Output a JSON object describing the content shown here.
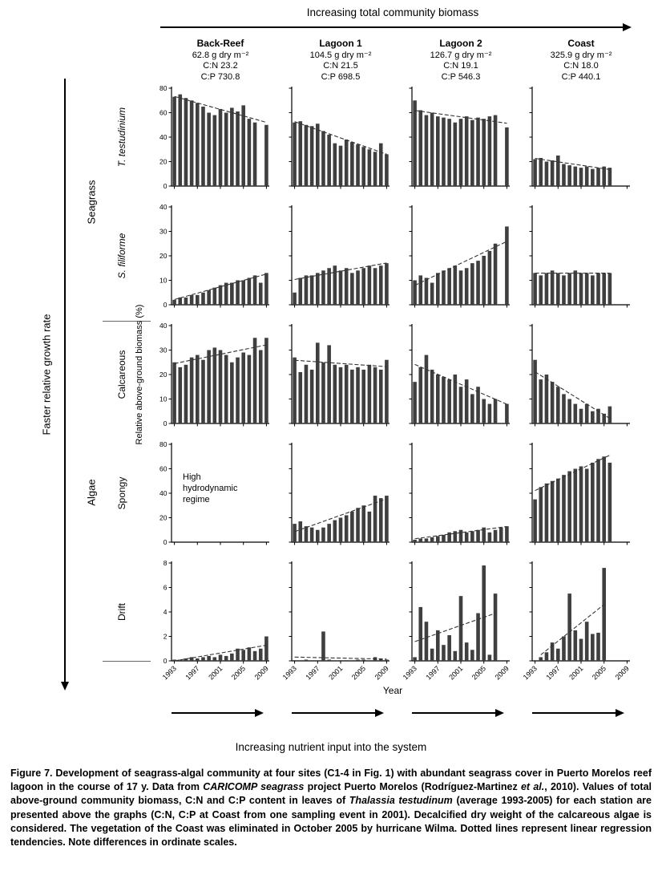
{
  "top": {
    "title": "Increasing total community biomass"
  },
  "bottom": {
    "year_label": "Year",
    "title": "Increasing nutrient input into the system"
  },
  "left": {
    "title": "Faster relative growth rate",
    "ylabel": "Relative above-ground biomass (%)"
  },
  "groups": [
    {
      "label": "Seagrass"
    },
    {
      "label": "Algae"
    }
  ],
  "columns": [
    {
      "name": "Back-Reef",
      "biomass": "62.8 g dry m⁻²",
      "cn": "C:N 23.2",
      "cp": "C:P 730.8"
    },
    {
      "name": "Lagoon 1",
      "biomass": "104.5 g dry m⁻²",
      "cn": "C:N 21.5",
      "cp": "C:P 698.5"
    },
    {
      "name": "Lagoon 2",
      "biomass": "126.7 g dry m⁻²",
      "cn": "C:N 19.1",
      "cp": "C:P 546.3"
    },
    {
      "name": "Coast",
      "biomass": "325.9 g dry m⁻²",
      "cn": "C:N 18.0",
      "cp": "C:P 440.1"
    }
  ],
  "chart_data": {
    "type": "bar",
    "years": [
      1993,
      1994,
      1995,
      1996,
      1997,
      1998,
      1999,
      2000,
      2001,
      2002,
      2003,
      2004,
      2005,
      2006,
      2007,
      2008,
      2009
    ],
    "x_tick_labels": [
      "1993",
      "1997",
      "2001",
      "2005",
      "2009"
    ],
    "x_tick_indices": [
      0,
      4,
      8,
      12,
      16
    ],
    "bar_color": "#3f3f3f",
    "trend_style": "dotted linear regression",
    "rows": [
      {
        "label": "T. testudinium",
        "italic": true,
        "group": "Seagrass",
        "ylim": [
          0,
          80
        ],
        "yticks": [
          0,
          20,
          40,
          60,
          80
        ],
        "series": [
          [
            73,
            75,
            72,
            70,
            68,
            65,
            60,
            58,
            63,
            60,
            64,
            61,
            66,
            55,
            52,
            null,
            50
          ],
          [
            52,
            53,
            50,
            49,
            51,
            45,
            42,
            35,
            33,
            38,
            36,
            34,
            32,
            30,
            28,
            35,
            26
          ],
          [
            70,
            62,
            58,
            60,
            57,
            56,
            55,
            52,
            55,
            57,
            54,
            56,
            55,
            57,
            58,
            null,
            48
          ],
          [
            22,
            23,
            20,
            21,
            25,
            18,
            17,
            16,
            15,
            16,
            14,
            15,
            16,
            15,
            null,
            null,
            null
          ]
        ]
      },
      {
        "label": "S. filiforme",
        "italic": true,
        "group": "Seagrass",
        "ylim": [
          0,
          40
        ],
        "yticks": [
          0,
          10,
          20,
          30,
          40
        ],
        "series": [
          [
            2,
            3,
            3,
            4,
            4,
            5,
            6,
            7,
            8,
            9,
            9,
            10,
            10,
            11,
            12,
            9,
            13
          ],
          [
            5,
            11,
            12,
            12,
            13,
            14,
            15,
            16,
            14,
            15,
            13,
            14,
            15,
            16,
            15,
            16,
            17
          ],
          [
            10,
            12,
            11,
            9,
            13,
            14,
            15,
            16,
            14,
            15,
            17,
            18,
            20,
            22,
            25,
            null,
            32
          ],
          [
            13,
            12,
            13,
            14,
            13,
            12,
            13,
            14,
            13,
            13,
            12,
            13,
            13,
            13,
            null,
            null,
            null
          ]
        ]
      },
      {
        "label": "Calcareous",
        "italic": false,
        "group": "Algae",
        "ylim": [
          0,
          40
        ],
        "yticks": [
          0,
          10,
          20,
          30,
          40
        ],
        "series": [
          [
            25,
            23,
            24,
            27,
            28,
            26,
            30,
            31,
            30,
            28,
            25,
            27,
            29,
            28,
            35,
            30,
            35
          ],
          [
            27,
            21,
            24,
            22,
            33,
            25,
            32,
            24,
            23,
            24,
            22,
            23,
            22,
            24,
            23,
            22,
            26
          ],
          [
            17,
            23,
            28,
            22,
            20,
            19,
            18,
            20,
            15,
            18,
            12,
            15,
            10,
            8,
            10,
            null,
            8
          ],
          [
            26,
            18,
            20,
            17,
            15,
            12,
            10,
            8,
            6,
            8,
            5,
            6,
            4,
            7,
            null,
            null,
            null
          ]
        ]
      },
      {
        "label": "Spongy",
        "italic": false,
        "group": "Algae",
        "ylim": [
          0,
          80
        ],
        "yticks": [
          0,
          20,
          40,
          60,
          80
        ],
        "series": [
          null,
          [
            15,
            17,
            13,
            12,
            10,
            12,
            15,
            18,
            20,
            22,
            25,
            28,
            30,
            25,
            38,
            36,
            38
          ],
          [
            2,
            3,
            3,
            4,
            5,
            6,
            8,
            9,
            10,
            8,
            9,
            10,
            12,
            8,
            10,
            12,
            13
          ],
          [
            35,
            45,
            48,
            50,
            52,
            55,
            58,
            60,
            62,
            60,
            65,
            68,
            70,
            65,
            null,
            null,
            null
          ]
        ]
      },
      {
        "label": "Drift",
        "italic": false,
        "group": "Algae",
        "ylim": [
          0,
          8
        ],
        "yticks": [
          0,
          2,
          4,
          6,
          8
        ],
        "series": [
          [
            0.1,
            0.1,
            0.2,
            0.3,
            0.2,
            0.3,
            0.4,
            0.3,
            0.5,
            0.4,
            0.6,
            1.0,
            0.9,
            1.1,
            0.8,
            1.0,
            2.0
          ],
          [
            0.05,
            0.05,
            0.1,
            0.05,
            0.05,
            2.4,
            0.1,
            0.05,
            0.05,
            0.05,
            0.05,
            0.1,
            0.1,
            0.05,
            0.3,
            0.2,
            0.1
          ],
          [
            0.3,
            4.4,
            3.2,
            1.0,
            2.5,
            1.3,
            2.1,
            0.8,
            5.3,
            1.5,
            0.9,
            3.9,
            7.8,
            0.5,
            5.5,
            null,
            null
          ],
          [
            null,
            0.3,
            0.7,
            1.5,
            1.0,
            2.0,
            5.5,
            2.5,
            1.8,
            3.2,
            2.2,
            2.3,
            7.6,
            null,
            null,
            null,
            null
          ]
        ]
      }
    ],
    "special_cell": {
      "row_index": 3,
      "col_index": 0,
      "lines": [
        "High",
        "hydrodynamic",
        "regime"
      ]
    }
  },
  "caption": {
    "segments": [
      {
        "t": "Figure 7. Development of seagrass-algal community at four sites (C1-4 in Fig. 1) with abundant seagrass cover in Puerto Morelos reef lagoon in the course of 17 y. Data from "
      },
      {
        "t": "CARICOMP seagrass",
        "i": true
      },
      {
        "t": " project Puerto Morelos (Rodríguez-Martinez "
      },
      {
        "t": "et al.",
        "i": true
      },
      {
        "t": ", 2010). Values of total above-ground community biomass, C:N and C:P content in leaves of "
      },
      {
        "t": "Thalassia testudinum",
        "i": true
      },
      {
        "t": " (average 1993-2005) for each station are presented above the graphs (C:N, C:P at Coast from one sampling event in 2001). Decalcified dry weight of the calcareous algae is considered. The vegetation of the Coast was eliminated in October 2005 by hurricane Wilma. Dotted lines represent linear regression tendencies. Note differences in ordinate scales."
      }
    ]
  }
}
